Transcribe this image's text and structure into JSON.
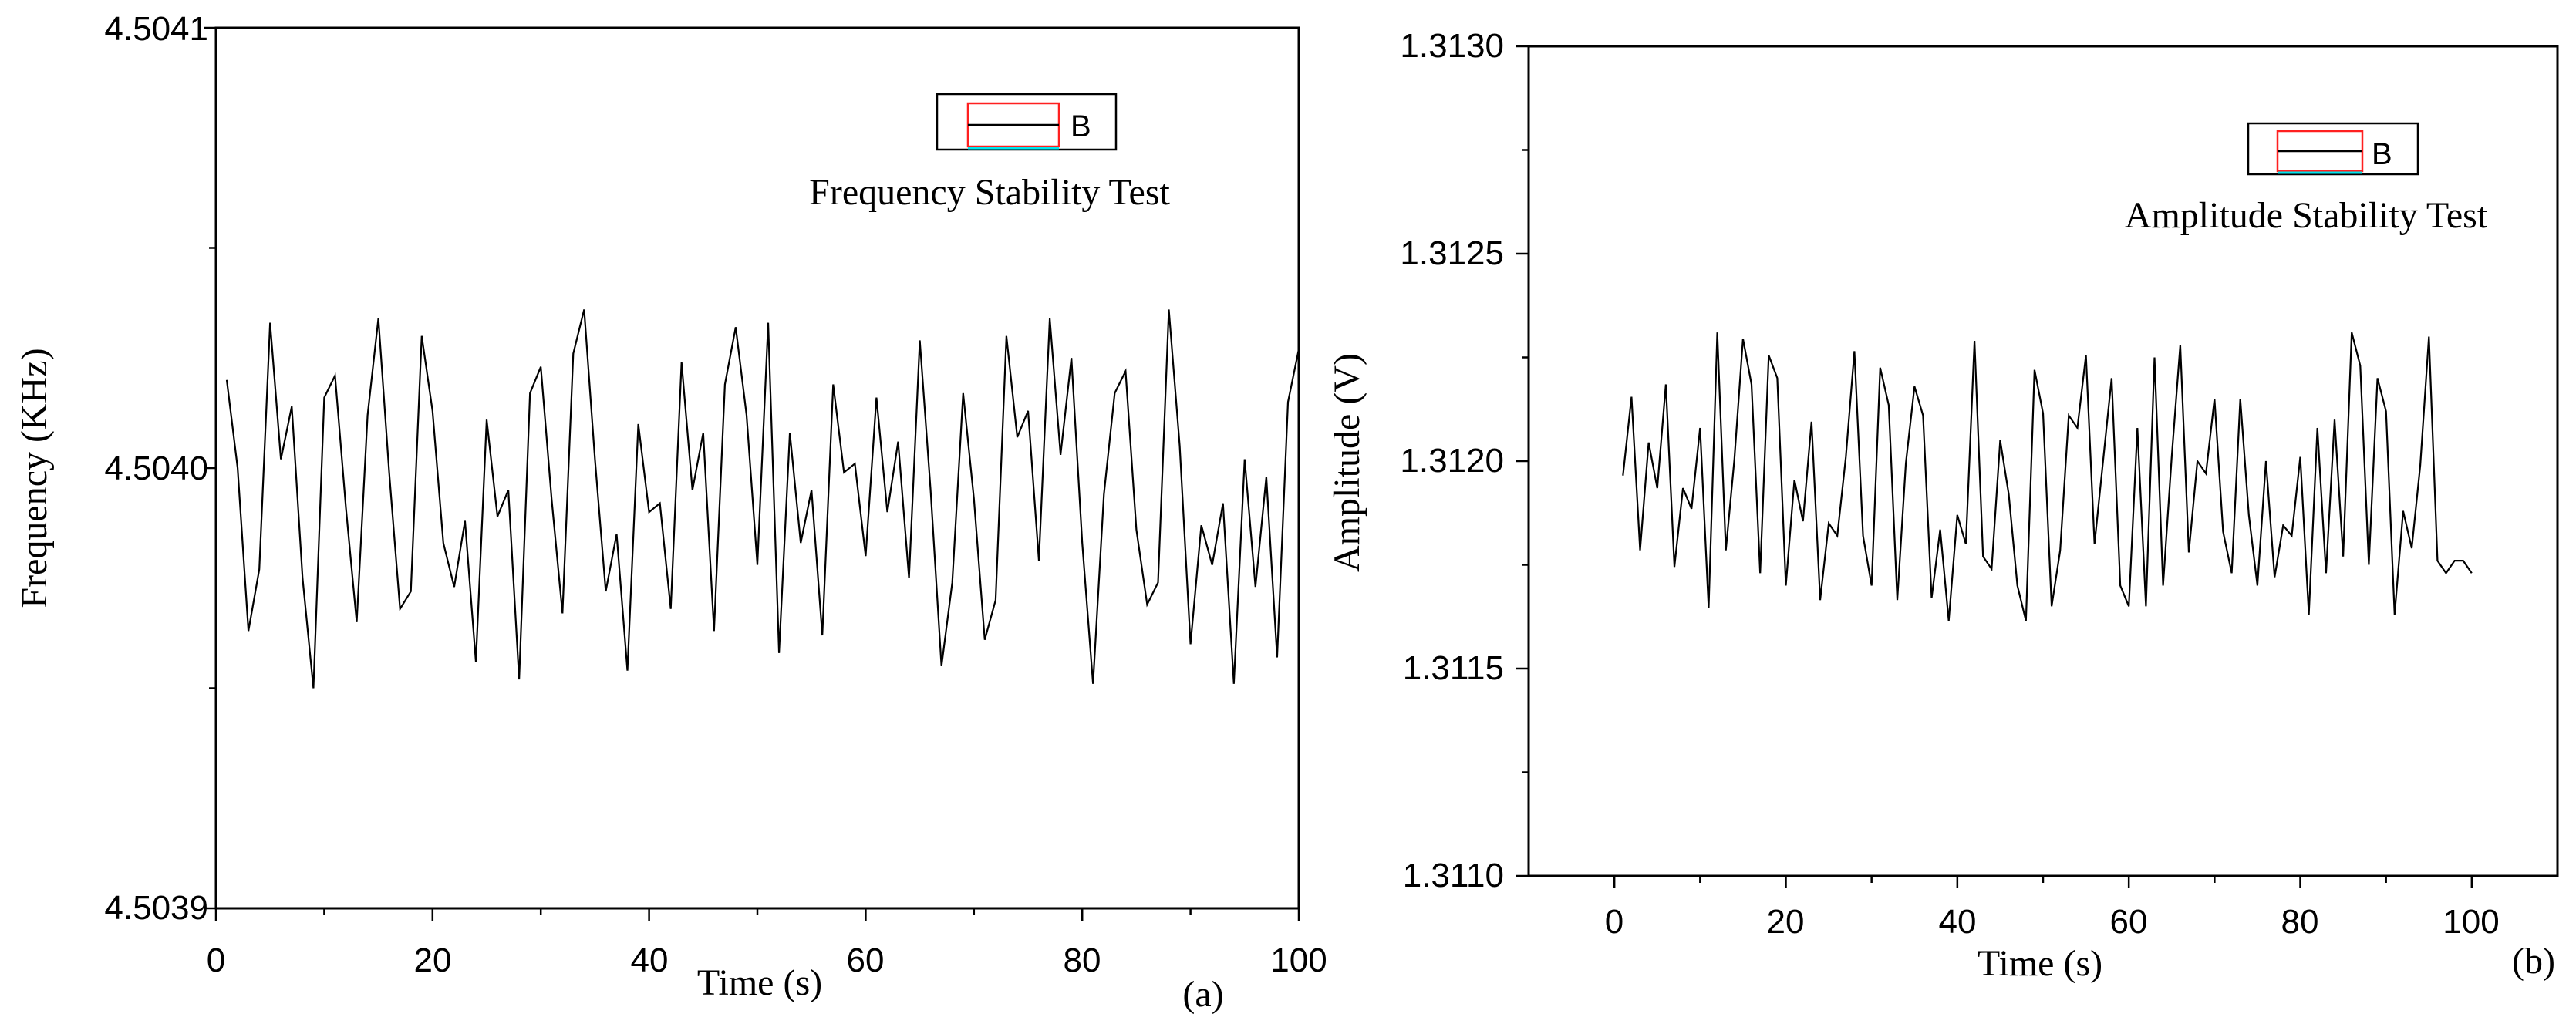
{
  "chart_data": [
    {
      "type": "line",
      "panel_label": "(a)",
      "title": "Frequency Stability Test",
      "xlabel": "Time (s)",
      "ylabel": "Frequency (KHz)",
      "xlim": [
        0,
        100
      ],
      "ylim": [
        4.5039,
        4.5041
      ],
      "xticks": [
        "0",
        "20",
        "40",
        "60",
        "80",
        "100"
      ],
      "yticks": [
        "4.5039",
        "4.5040",
        "4.5041"
      ],
      "legend": {
        "label": "B",
        "position": "top-right"
      },
      "series": [
        {
          "name": "B",
          "x": [
            1,
            2,
            3,
            4,
            5,
            6,
            7,
            8,
            9,
            10,
            11,
            12,
            13,
            14,
            15,
            16,
            17,
            18,
            19,
            20,
            21,
            22,
            23,
            24,
            25,
            26,
            27,
            28,
            29,
            30,
            31,
            32,
            33,
            34,
            35,
            36,
            37,
            38,
            39,
            40,
            41,
            42,
            43,
            44,
            45,
            46,
            47,
            48,
            49,
            50,
            51,
            52,
            53,
            54,
            55,
            56,
            57,
            58,
            59,
            60,
            61,
            62,
            63,
            64,
            65,
            66,
            67,
            68,
            69,
            70,
            71,
            72,
            73,
            74,
            75,
            76,
            77,
            78,
            79,
            80,
            81,
            82,
            83,
            84,
            85,
            86,
            87,
            88,
            89,
            90,
            91,
            92,
            93,
            94,
            95,
            96,
            97,
            98,
            99,
            100
          ],
          "values": [
            4.50402,
            4.504,
            4.503963,
            4.503977,
            4.504033,
            4.504002,
            4.504014,
            4.503975,
            4.50395,
            4.504016,
            4.504021,
            4.503991,
            4.503965,
            4.504012,
            4.504034,
            4.503999,
            4.503968,
            4.503972,
            4.50403,
            4.504013,
            4.503983,
            4.503973,
            4.503988,
            4.503956,
            4.504011,
            4.503989,
            4.503995,
            4.503952,
            4.504017,
            4.504023,
            4.503993,
            4.503967,
            4.504026,
            4.504036,
            4.504002,
            4.503972,
            4.503985,
            4.503954,
            4.50401,
            4.50399,
            4.503992,
            4.503968,
            4.504024,
            4.503995,
            4.504008,
            4.503963,
            4.504019,
            4.504032,
            4.504012,
            4.503978,
            4.504033,
            4.503958,
            4.504008,
            4.503983,
            4.503995,
            4.503962,
            4.504019,
            4.503999,
            4.504001,
            4.50398,
            4.504016,
            4.50399,
            4.504006,
            4.503975,
            4.504029,
            4.503995,
            4.503955,
            4.503974,
            4.504017,
            4.503993,
            4.503961,
            4.50397,
            4.50403,
            4.504007,
            4.504013,
            4.503979,
            4.504034,
            4.504003,
            4.504025,
            4.503983,
            4.503951,
            4.503994,
            4.504017,
            4.504022,
            4.503986,
            4.503969,
            4.503974,
            4.504036,
            4.504005,
            4.50396,
            4.503987,
            4.503978,
            4.503992,
            4.503951,
            4.504002,
            4.503973,
            4.503998,
            4.503957,
            4.504015,
            4.504027
          ]
        }
      ]
    },
    {
      "type": "line",
      "panel_label": "(b)",
      "title": "Amplitude Stability Test",
      "xlabel": "Time (s)",
      "ylabel": "Amplitude (V)",
      "xlim": [
        -10,
        110
      ],
      "ylim": [
        1.311,
        1.313
      ],
      "xticks": [
        "0",
        "20",
        "40",
        "60",
        "80",
        "100"
      ],
      "yticks": [
        "1.3110",
        "1.3115",
        "1.3120",
        "1.3125",
        "1.3130"
      ],
      "legend": {
        "label": "B",
        "position": "top-right"
      },
      "series": [
        {
          "name": "B",
          "x": [
            1,
            2,
            3,
            4,
            5,
            6,
            7,
            8,
            9,
            10,
            11,
            12,
            13,
            14,
            15,
            16,
            17,
            18,
            19,
            20,
            21,
            22,
            23,
            24,
            25,
            26,
            27,
            28,
            29,
            30,
            31,
            32,
            33,
            34,
            35,
            36,
            37,
            38,
            39,
            40,
            41,
            42,
            43,
            44,
            45,
            46,
            47,
            48,
            49,
            50,
            51,
            52,
            53,
            54,
            55,
            56,
            57,
            58,
            59,
            60,
            61,
            62,
            63,
            64,
            65,
            66,
            67,
            68,
            69,
            70,
            71,
            72,
            73,
            74,
            75,
            76,
            77,
            78,
            79,
            80,
            81,
            82,
            83,
            84,
            85,
            86,
            87,
            88,
            89,
            90,
            91,
            92,
            93,
            94,
            95,
            96,
            97,
            98,
            99,
            100
          ],
          "values": [
            1.311965,
            1.312155,
            1.311785,
            1.312045,
            1.311935,
            1.312185,
            1.311745,
            1.311935,
            1.311885,
            1.31208,
            1.311645,
            1.31231,
            1.311785,
            1.312005,
            1.312295,
            1.312185,
            1.31173,
            1.312255,
            1.3122,
            1.3117,
            1.311955,
            1.311855,
            1.312095,
            1.311665,
            1.31185,
            1.31182,
            1.31201,
            1.312265,
            1.31182,
            1.3117,
            1.312225,
            1.312135,
            1.311665,
            1.311995,
            1.31218,
            1.31211,
            1.31167,
            1.311835,
            1.311615,
            1.31187,
            1.3118,
            1.31229,
            1.31177,
            1.31174,
            1.31205,
            1.31192,
            1.3117,
            1.311615,
            1.31222,
            1.312115,
            1.31165,
            1.311785,
            1.31211,
            1.31208,
            1.312255,
            1.3118,
            1.312,
            1.3122,
            1.3117,
            1.31165,
            1.31208,
            1.31165,
            1.31225,
            1.3117,
            1.31201,
            1.31228,
            1.31178,
            1.312,
            1.31197,
            1.31215,
            1.31183,
            1.31173,
            1.31215,
            1.31187,
            1.3117,
            1.312,
            1.31172,
            1.311845,
            1.31182,
            1.31201,
            1.31163,
            1.31208,
            1.31173,
            1.3121,
            1.31177,
            1.31231,
            1.31223,
            1.31175,
            1.3122,
            1.31212,
            1.31163,
            1.31188,
            1.31179,
            1.31199,
            1.3123,
            1.31176,
            1.31173,
            1.31176,
            1.31176,
            1.31173
          ]
        }
      ]
    }
  ]
}
